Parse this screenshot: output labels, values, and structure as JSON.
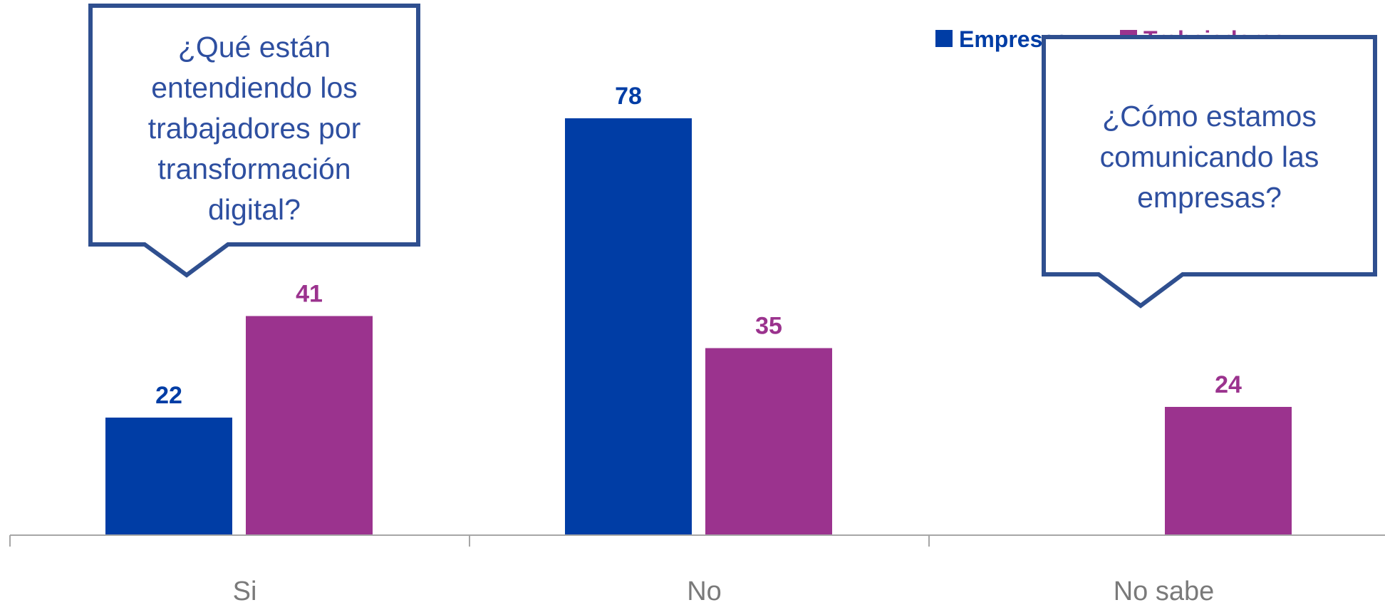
{
  "chart_data": {
    "type": "bar",
    "categories": [
      "Si",
      "No",
      "No sabe"
    ],
    "series": [
      {
        "name": "Empresas",
        "color": "#003da5",
        "values": [
          22,
          78,
          null
        ]
      },
      {
        "name": "Trabajadores",
        "color": "#9b338e",
        "values": [
          41,
          35,
          24
        ]
      }
    ],
    "ylim": [
      0,
      100
    ],
    "grid": false,
    "legend_position": "top-right",
    "annotations": [
      "¿Qué están entendiendo los trabajadores por transformación digital?",
      "¿Cómo estamos comunicando las empresas?"
    ]
  },
  "callouts": [
    {
      "lines": [
        "¿Qué están",
        "entendiendo los",
        "trabajadores por",
        "transformación",
        "digital?"
      ]
    },
    {
      "lines": [
        "¿Cómo estamos",
        "comunicando las",
        "empresas?"
      ]
    }
  ],
  "colors": {
    "axis": "#a6a6a6",
    "callout_border": "#2f4f8f",
    "category_text": "#7a7a7a"
  }
}
